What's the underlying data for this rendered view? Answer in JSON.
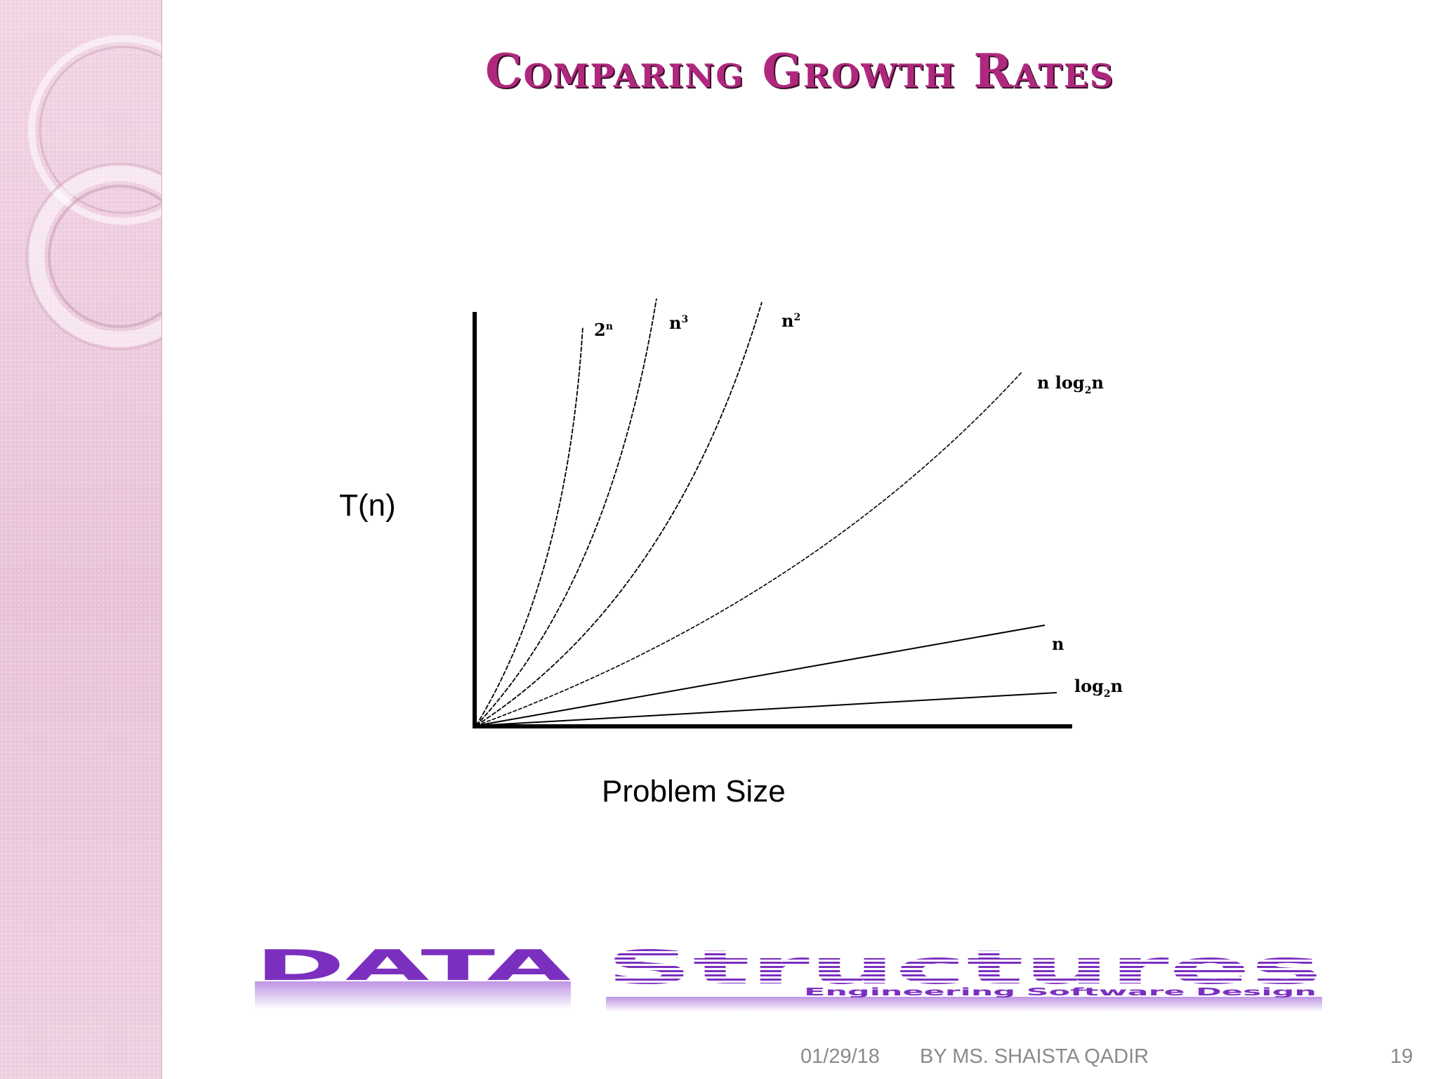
{
  "slide": {
    "title": "Comparing Growth Rates",
    "accent_color": "#b0287e"
  },
  "diagram": {
    "y_axis_label": "T(n)",
    "x_axis_label": "Problem Size",
    "curves": [
      {
        "name": "2n",
        "base": "2",
        "sup": "n",
        "sub": ""
      },
      {
        "name": "n3",
        "base": "n",
        "sup": "3",
        "sub": ""
      },
      {
        "name": "n2",
        "base": "n",
        "sup": "2",
        "sub": ""
      },
      {
        "name": "n log2n",
        "base": "n log",
        "sub": "2",
        "after": "n"
      },
      {
        "name": "n",
        "base": "n",
        "sup": "",
        "sub": ""
      },
      {
        "name": "log2n",
        "base": "log",
        "sub": "2",
        "after": "n"
      }
    ]
  },
  "banner": {
    "word1": "DATA",
    "word2": "Structures",
    "tagline": "Engineering Software Design",
    "color": "#7b2fbf"
  },
  "footer": {
    "date": "01/29/18",
    "author": "BY MS. SHAISTA QADIR",
    "page": "19"
  }
}
